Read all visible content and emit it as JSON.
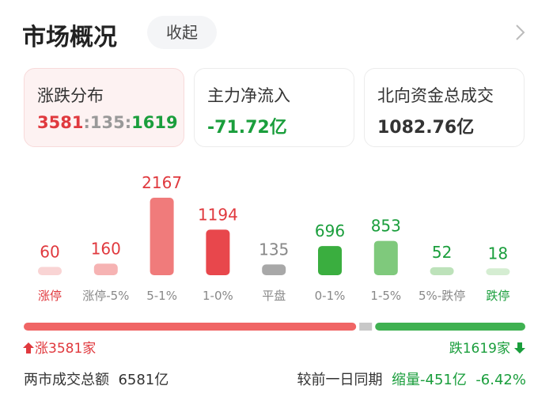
{
  "header": {
    "title": "市场概况",
    "button": "收起"
  },
  "cards": [
    {
      "label": "涨跌分布",
      "ratio": {
        "up": 3581,
        "sep": ":",
        "flat": 135,
        "down": 1619
      }
    },
    {
      "label": "主力净流入",
      "value": "-71.72亿"
    },
    {
      "label": "北向资金总成交",
      "value": "1082.76亿"
    }
  ],
  "distribution": {
    "categories": [
      "涨停",
      "涨停-5%",
      "5-1%",
      "1-0%",
      "平盘",
      "0-1%",
      "1-5%",
      "5%-跌停",
      "跌停"
    ],
    "values": [
      60,
      160,
      2167,
      1194,
      135,
      696,
      853,
      52,
      18
    ],
    "colors": [
      "#f9d4d4",
      "#f6b3b3",
      "#f07b7b",
      "#e8474c",
      "#a8a8a8",
      "#3aae3f",
      "#7fc97c",
      "#bde2ba",
      "#d5edd2"
    ],
    "text_colors": [
      "#e0393e",
      "#e0393e",
      "#e0393e",
      "#e0393e",
      "#888888",
      "#1a9e3c",
      "#1a9e3c",
      "#1a9e3c",
      "#1a9e3c"
    ]
  },
  "summary": {
    "up_label": "涨3581家",
    "down_label": "跌1619家"
  },
  "footer": {
    "label": "两市成交总额",
    "total": "6581亿",
    "compare_label": "较前一日同期",
    "change": "缩量-451亿",
    "change_pct": "-6.42%"
  }
}
